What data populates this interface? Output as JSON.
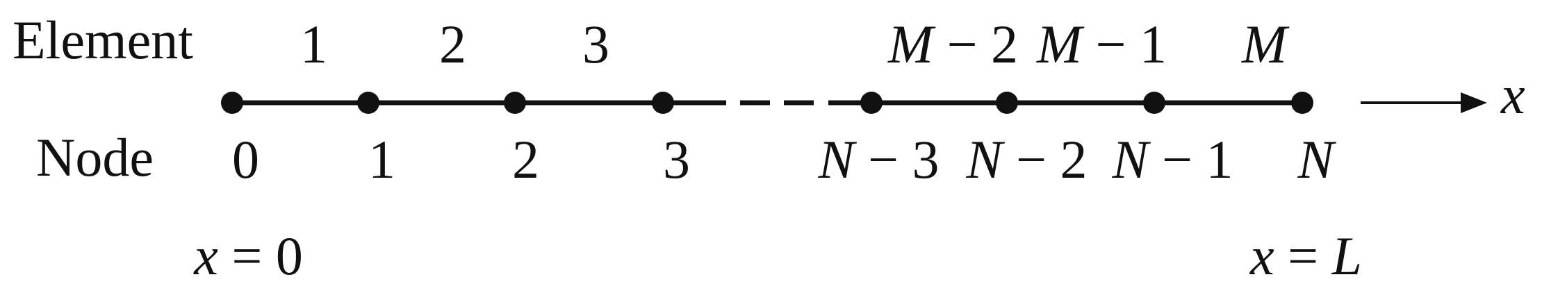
{
  "row_labels": {
    "element": "Element",
    "node": "Node"
  },
  "axis": {
    "variable": "x",
    "start_label": {
      "var": "x",
      "eq": " = ",
      "val": "0"
    },
    "end_label": {
      "var": "x",
      "eq": " = ",
      "val": "L"
    }
  },
  "elements": [
    {
      "var": "",
      "op": "",
      "num": "1"
    },
    {
      "var": "",
      "op": "",
      "num": "2"
    },
    {
      "var": "",
      "op": "",
      "num": "3"
    },
    {
      "var": "M",
      "op": " − ",
      "num": "2"
    },
    {
      "var": "M",
      "op": " − ",
      "num": "1"
    },
    {
      "var": "M",
      "op": "",
      "num": ""
    }
  ],
  "nodes": [
    {
      "var": "",
      "op": "",
      "num": "0"
    },
    {
      "var": "",
      "op": "",
      "num": "1"
    },
    {
      "var": "",
      "op": "",
      "num": "2"
    },
    {
      "var": "",
      "op": "",
      "num": "3"
    },
    {
      "var": "N",
      "op": " − ",
      "num": "3"
    },
    {
      "var": "N",
      "op": " − ",
      "num": "2"
    },
    {
      "var": "N",
      "op": " − ",
      "num": "1"
    },
    {
      "var": "N",
      "op": "",
      "num": ""
    }
  ],
  "colors": {
    "ink": "#111111",
    "background": "#ffffff"
  }
}
